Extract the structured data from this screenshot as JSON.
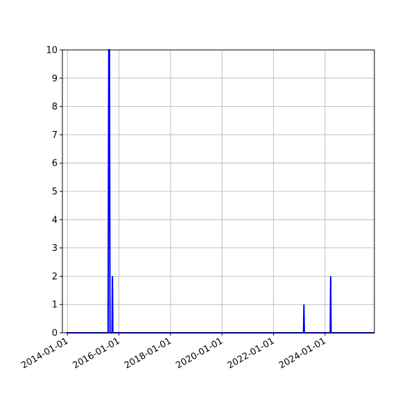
{
  "chart_data": {
    "type": "line",
    "title": "",
    "xlabel": "",
    "ylabel": "",
    "grid": true,
    "x_axis_kind": "date",
    "xlim": [
      "2013-10-22",
      "2025-11-30"
    ],
    "ylim": [
      0,
      10
    ],
    "x_ticks": [
      "2014-01-01",
      "2016-01-01",
      "2018-01-01",
      "2020-01-01",
      "2022-01-01",
      "2024-01-01"
    ],
    "y_ticks": [
      0,
      1,
      2,
      3,
      4,
      5,
      6,
      7,
      8,
      9,
      10
    ],
    "series": [
      {
        "color": "#0000ff",
        "points": [
          {
            "x": "2013-12-15",
            "y": 0
          },
          {
            "x": "2015-08-01",
            "y": 0
          },
          {
            "x": "2015-08-10",
            "y": 10
          },
          {
            "x": "2015-08-20",
            "y": 10
          },
          {
            "x": "2015-08-28",
            "y": 0
          },
          {
            "x": "2015-09-25",
            "y": 0
          },
          {
            "x": "2015-10-01",
            "y": 2
          },
          {
            "x": "2015-10-07",
            "y": 0
          },
          {
            "x": "2023-03-01",
            "y": 0
          },
          {
            "x": "2023-03-07",
            "y": 1
          },
          {
            "x": "2023-03-13",
            "y": 0
          },
          {
            "x": "2024-03-14",
            "y": 0
          },
          {
            "x": "2024-03-20",
            "y": 2
          },
          {
            "x": "2024-03-26",
            "y": 0
          },
          {
            "x": "2025-11-30",
            "y": 0
          }
        ]
      }
    ]
  }
}
